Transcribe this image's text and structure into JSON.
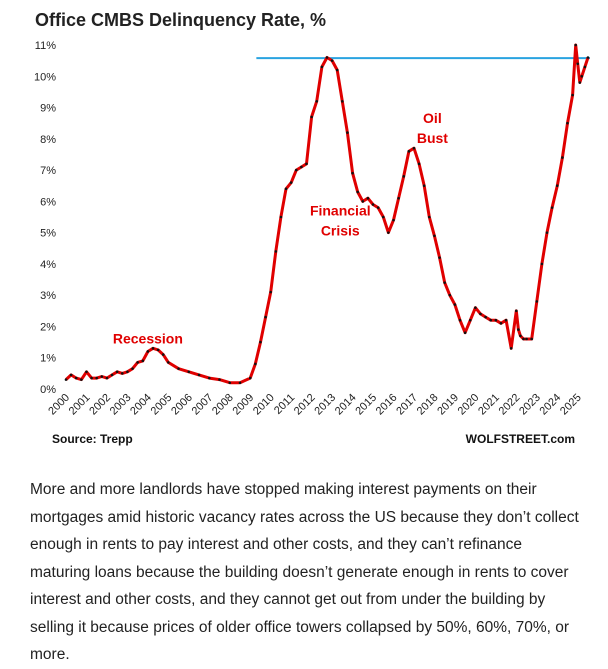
{
  "chart_data": {
    "type": "line",
    "title": "Office CMBS Delinquency Rate, %",
    "source": "Source: Trepp",
    "watermark": "WOLFSTREET.com",
    "ylim": [
      0,
      11
    ],
    "y_ticks": [
      "0%",
      "1%",
      "2%",
      "3%",
      "4%",
      "5%",
      "6%",
      "7%",
      "8%",
      "9%",
      "10%",
      "11%"
    ],
    "xlim": [
      2000,
      2025.6
    ],
    "x_ticks": [
      "2000",
      "2001",
      "2002",
      "2003",
      "2004",
      "2005",
      "2006",
      "2007",
      "2008",
      "2009",
      "2010",
      "2011",
      "2012",
      "2013",
      "2014",
      "2015",
      "2016",
      "2017",
      "2018",
      "2019",
      "2020",
      "2021",
      "2022",
      "2023",
      "2024",
      "2025"
    ],
    "grid": false,
    "colors": {
      "line": "#e00000",
      "marker": "#111111",
      "reference_line": "#29a3e0",
      "annotation": "#e00000"
    },
    "reference_line": {
      "y": 10.58,
      "x_start": 2009.3,
      "x_end": 2025.6
    },
    "annotations": [
      {
        "lines": [
          "Recession"
        ],
        "x": 2004,
        "y": 1.45
      },
      {
        "lines": [
          "Financial",
          "Crisis"
        ],
        "x": 2013.4,
        "y": 5.55
      },
      {
        "lines": [
          "Oil",
          "Bust"
        ],
        "x": 2017.9,
        "y": 8.5
      }
    ],
    "series": [
      {
        "x": [
          2000,
          2000.25,
          2000.5,
          2000.75,
          2001,
          2001.25,
          2001.5,
          2001.75,
          2002,
          2002.25,
          2002.5,
          2002.75,
          2003,
          2003.25,
          2003.5,
          2003.75,
          2004,
          2004.25,
          2004.5,
          2004.75,
          2005,
          2005.5,
          2006,
          2006.5,
          2007,
          2007.5,
          2008,
          2008.5,
          2009,
          2009.25,
          2009.5,
          2009.75,
          2010,
          2010.25,
          2010.5,
          2010.75,
          2011,
          2011.25,
          2011.5,
          2011.75,
          2012,
          2012.25,
          2012.5,
          2012.75,
          2013,
          2013.25,
          2013.5,
          2013.75,
          2014,
          2014.25,
          2014.5,
          2014.75,
          2015,
          2015.25,
          2015.5,
          2015.75,
          2016,
          2016.25,
          2016.5,
          2016.75,
          2017,
          2017.25,
          2017.5,
          2017.75,
          2018,
          2018.25,
          2018.5,
          2018.75,
          2019,
          2019.25,
          2019.5,
          2019.75,
          2020,
          2020.25,
          2020.5,
          2020.75,
          2021,
          2021.25,
          2021.5,
          2021.75,
          2022,
          2022.1,
          2022.2,
          2022.35,
          2022.5,
          2022.75,
          2023,
          2023.25,
          2023.5,
          2023.75,
          2024,
          2024.25,
          2024.5,
          2024.75,
          2024.9,
          2025,
          2025.1,
          2025.2,
          2025.35,
          2025.5
        ],
        "values": [
          0.3,
          0.45,
          0.35,
          0.3,
          0.55,
          0.35,
          0.35,
          0.4,
          0.35,
          0.45,
          0.55,
          0.5,
          0.55,
          0.65,
          0.85,
          0.9,
          1.2,
          1.3,
          1.25,
          1.1,
          0.85,
          0.65,
          0.55,
          0.45,
          0.35,
          0.3,
          0.2,
          0.2,
          0.35,
          0.8,
          1.5,
          2.3,
          3.1,
          4.4,
          5.5,
          6.4,
          6.6,
          7.0,
          7.1,
          7.2,
          8.7,
          9.2,
          10.3,
          10.6,
          10.5,
          10.2,
          9.2,
          8.2,
          6.9,
          6.3,
          6.0,
          6.1,
          5.9,
          5.8,
          5.5,
          5.0,
          5.4,
          6.1,
          6.8,
          7.6,
          7.7,
          7.2,
          6.5,
          5.5,
          4.9,
          4.2,
          3.4,
          3.0,
          2.7,
          2.2,
          1.8,
          2.2,
          2.6,
          2.4,
          2.3,
          2.2,
          2.2,
          2.1,
          2.2,
          1.3,
          2.5,
          1.9,
          1.7,
          1.6,
          1.6,
          1.6,
          2.8,
          4.0,
          5.0,
          5.8,
          6.5,
          7.4,
          8.5,
          9.4,
          11.0,
          10.4,
          9.8,
          10.0,
          10.3,
          10.6
        ]
      }
    ]
  },
  "caption": "More and more landlords have stopped making interest payments on their mortgages amid historic vacancy rates across the US because they don’t collect enough in rents to pay interest and other costs, and they can’t refinance maturing loans because the building doesn’t generate enough in rents to cover interest and other costs, and they cannot get out from under the building by selling it because prices of older office towers collapsed by 50%, 60%, 70%, or more."
}
